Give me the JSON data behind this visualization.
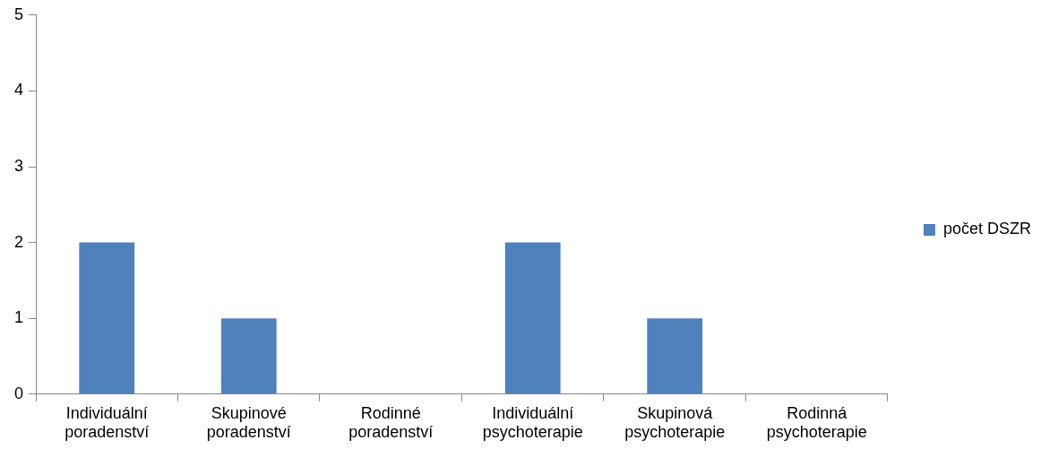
{
  "chart_data": {
    "type": "bar",
    "categories": [
      "Individuální poradenství",
      "Skupinové poradenství",
      "Rodinné poradenství",
      "Individuální psychoterapie",
      "Skupinová psychoterapie",
      "Rodinná psychoterapie"
    ],
    "series": [
      {
        "name": "počet DSZR",
        "color": "#4f81bd",
        "values": [
          2,
          1,
          0,
          2,
          1,
          0
        ]
      }
    ],
    "ylim": [
      0,
      5
    ],
    "yticks": [
      0,
      1,
      2,
      3,
      4,
      5
    ],
    "grid": false,
    "legend": "right"
  }
}
